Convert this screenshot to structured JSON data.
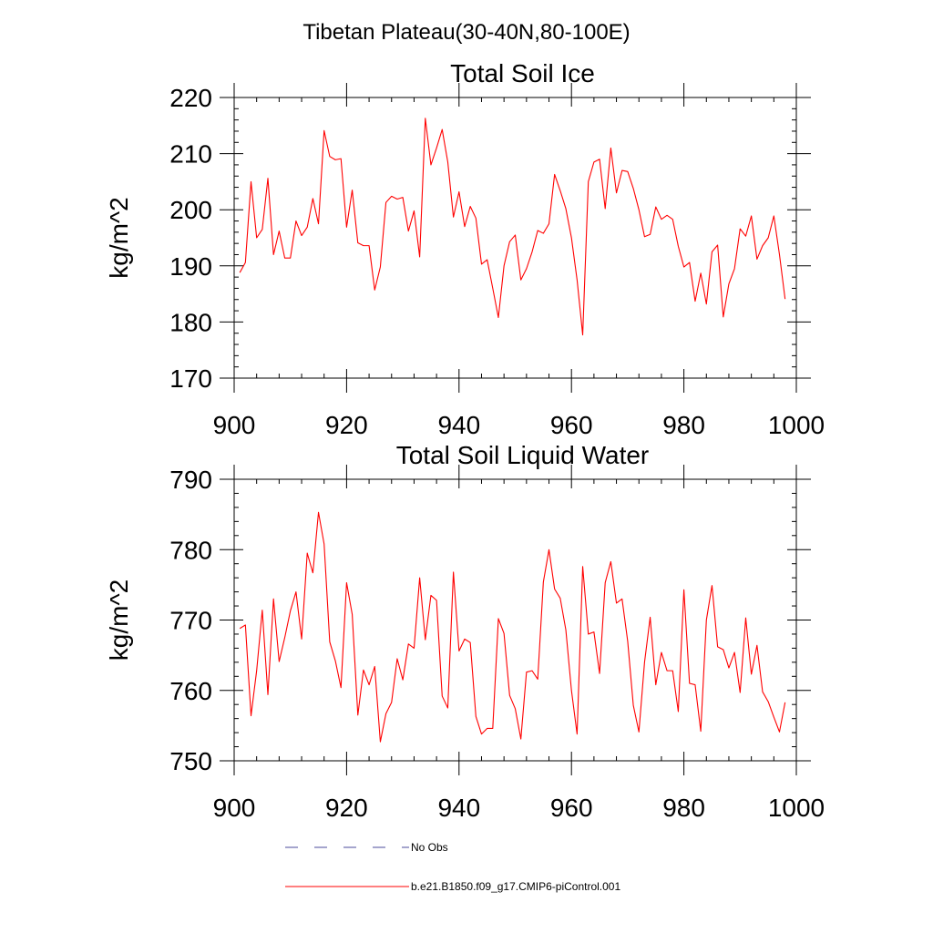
{
  "figure_title": "Tibetan Plateau(30-40N,80-100E)",
  "chart_data": [
    {
      "type": "line",
      "title": "Total Soil Ice",
      "xlabel": "",
      "ylabel": "kg/m^2",
      "xlim": [
        900,
        1000
      ],
      "ylim": [
        170,
        220
      ],
      "xticks": [
        900,
        920,
        940,
        960,
        980,
        1000
      ],
      "yticks": [
        170,
        180,
        190,
        200,
        210,
        220
      ],
      "grid": false,
      "series": [
        {
          "name": "b.e21.B1850.f09_g17.CMIP6-piControl.001",
          "color": "#ff0000",
          "x": [
            901,
            902,
            903,
            904,
            905,
            906,
            907,
            908,
            909,
            910,
            911,
            912,
            913,
            914,
            915,
            916,
            917,
            918,
            919,
            920,
            921,
            922,
            923,
            924,
            925,
            926,
            927,
            928,
            929,
            930,
            931,
            932,
            933,
            934,
            935,
            936,
            937,
            938,
            939,
            940,
            941,
            942,
            943,
            944,
            945,
            946,
            947,
            948,
            949,
            950,
            951,
            952,
            953,
            954,
            955,
            956,
            957,
            958,
            959,
            960,
            961,
            962,
            963,
            964,
            965,
            966,
            967,
            968,
            969,
            970,
            971,
            972,
            973,
            974,
            975,
            976,
            977,
            978,
            979,
            980,
            981,
            982,
            983,
            984,
            985,
            986,
            987,
            988,
            989,
            990,
            991,
            992,
            993,
            994,
            995,
            996,
            997,
            998
          ],
          "y": [
            188.8,
            190.6,
            205.0,
            195.0,
            196.5,
            205.6,
            192.0,
            196.2,
            191.4,
            191.4,
            198.0,
            195.4,
            196.9,
            202.0,
            197.5,
            214.1,
            209.5,
            208.9,
            209.1,
            196.9,
            203.5,
            194.1,
            193.6,
            193.6,
            185.7,
            189.8,
            201.3,
            202.4,
            201.9,
            202.2,
            196.2,
            199.8,
            191.6,
            216.3,
            208.0,
            211.0,
            214.3,
            208.5,
            198.7,
            203.2,
            197.0,
            200.6,
            198.5,
            190.3,
            191.1,
            186.0,
            180.8,
            190.0,
            194.3,
            195.5,
            187.5,
            189.5,
            192.5,
            196.3,
            195.8,
            197.5,
            206.3,
            203.4,
            200.2,
            195.0,
            187.5,
            177.7,
            205.0,
            208.5,
            209.0,
            200.2,
            211.0,
            203.0,
            207.0,
            206.8,
            203.8,
            200.0,
            195.2,
            195.6,
            200.5,
            198.3,
            199.0,
            198.3,
            193.5,
            189.8,
            190.6,
            183.7,
            188.7,
            183.2,
            192.5,
            193.7,
            180.9,
            186.8,
            189.5,
            196.6,
            195.3,
            198.9,
            191.2,
            193.6,
            195.0,
            198.9,
            192.0,
            184.1
          ]
        }
      ]
    },
    {
      "type": "line",
      "title": "Total Soil Liquid Water",
      "xlabel": "",
      "ylabel": "kg/m^2",
      "xlim": [
        900,
        1000
      ],
      "ylim": [
        750,
        790
      ],
      "xticks": [
        900,
        920,
        940,
        960,
        980,
        1000
      ],
      "yticks": [
        750,
        760,
        770,
        780,
        790
      ],
      "grid": false,
      "series": [
        {
          "name": "b.e21.B1850.f09_g17.CMIP6-piControl.001",
          "color": "#ff0000",
          "x": [
            901,
            902,
            903,
            904,
            905,
            906,
            907,
            908,
            909,
            910,
            911,
            912,
            913,
            914,
            915,
            916,
            917,
            918,
            919,
            920,
            921,
            922,
            923,
            924,
            925,
            926,
            927,
            928,
            929,
            930,
            931,
            932,
            933,
            934,
            935,
            936,
            937,
            938,
            939,
            940,
            941,
            942,
            943,
            944,
            945,
            946,
            947,
            948,
            949,
            950,
            951,
            952,
            953,
            954,
            955,
            956,
            957,
            958,
            959,
            960,
            961,
            962,
            963,
            964,
            965,
            966,
            967,
            968,
            969,
            970,
            971,
            972,
            973,
            974,
            975,
            976,
            977,
            978,
            979,
            980,
            981,
            982,
            983,
            984,
            985,
            986,
            987,
            988,
            989,
            990,
            991,
            992,
            993,
            994,
            995,
            996,
            997,
            998
          ],
          "y": [
            768.8,
            769.3,
            756.4,
            762.8,
            771.4,
            759.4,
            773.0,
            764.1,
            767.5,
            771.3,
            774.0,
            767.3,
            779.5,
            776.7,
            785.3,
            780.8,
            766.9,
            764.2,
            760.4,
            775.3,
            770.8,
            756.5,
            762.9,
            760.8,
            763.4,
            752.7,
            756.7,
            758.3,
            764.5,
            761.5,
            766.6,
            766.0,
            776.0,
            767.2,
            773.5,
            772.8,
            759.2,
            757.5,
            776.8,
            765.6,
            767.3,
            766.8,
            756.3,
            753.8,
            754.6,
            754.6,
            770.2,
            768.1,
            759.3,
            757.4,
            753.1,
            762.6,
            762.8,
            761.6,
            775.4,
            780.0,
            774.4,
            773.1,
            768.6,
            760.0,
            753.8,
            777.6,
            768.0,
            768.3,
            762.4,
            775.3,
            778.3,
            772.4,
            773.0,
            767.0,
            757.9,
            754.1,
            764.0,
            770.4,
            760.8,
            765.4,
            762.8,
            762.8,
            757.0,
            774.3,
            761.0,
            760.8,
            754.2,
            770.0,
            774.9,
            766.2,
            765.8,
            763.2,
            765.4,
            759.7,
            770.3,
            762.3,
            766.4,
            759.8,
            758.4,
            756.2,
            754.1,
            758.3
          ]
        }
      ]
    }
  ],
  "legend": {
    "entries": [
      {
        "label": "No Obs",
        "color": "#4b4b9b",
        "dash": "dashed"
      },
      {
        "label": "b.e21.B1850.f09_g17.CMIP6-piControl.001",
        "color": "#ff0000",
        "dash": "solid"
      }
    ]
  }
}
